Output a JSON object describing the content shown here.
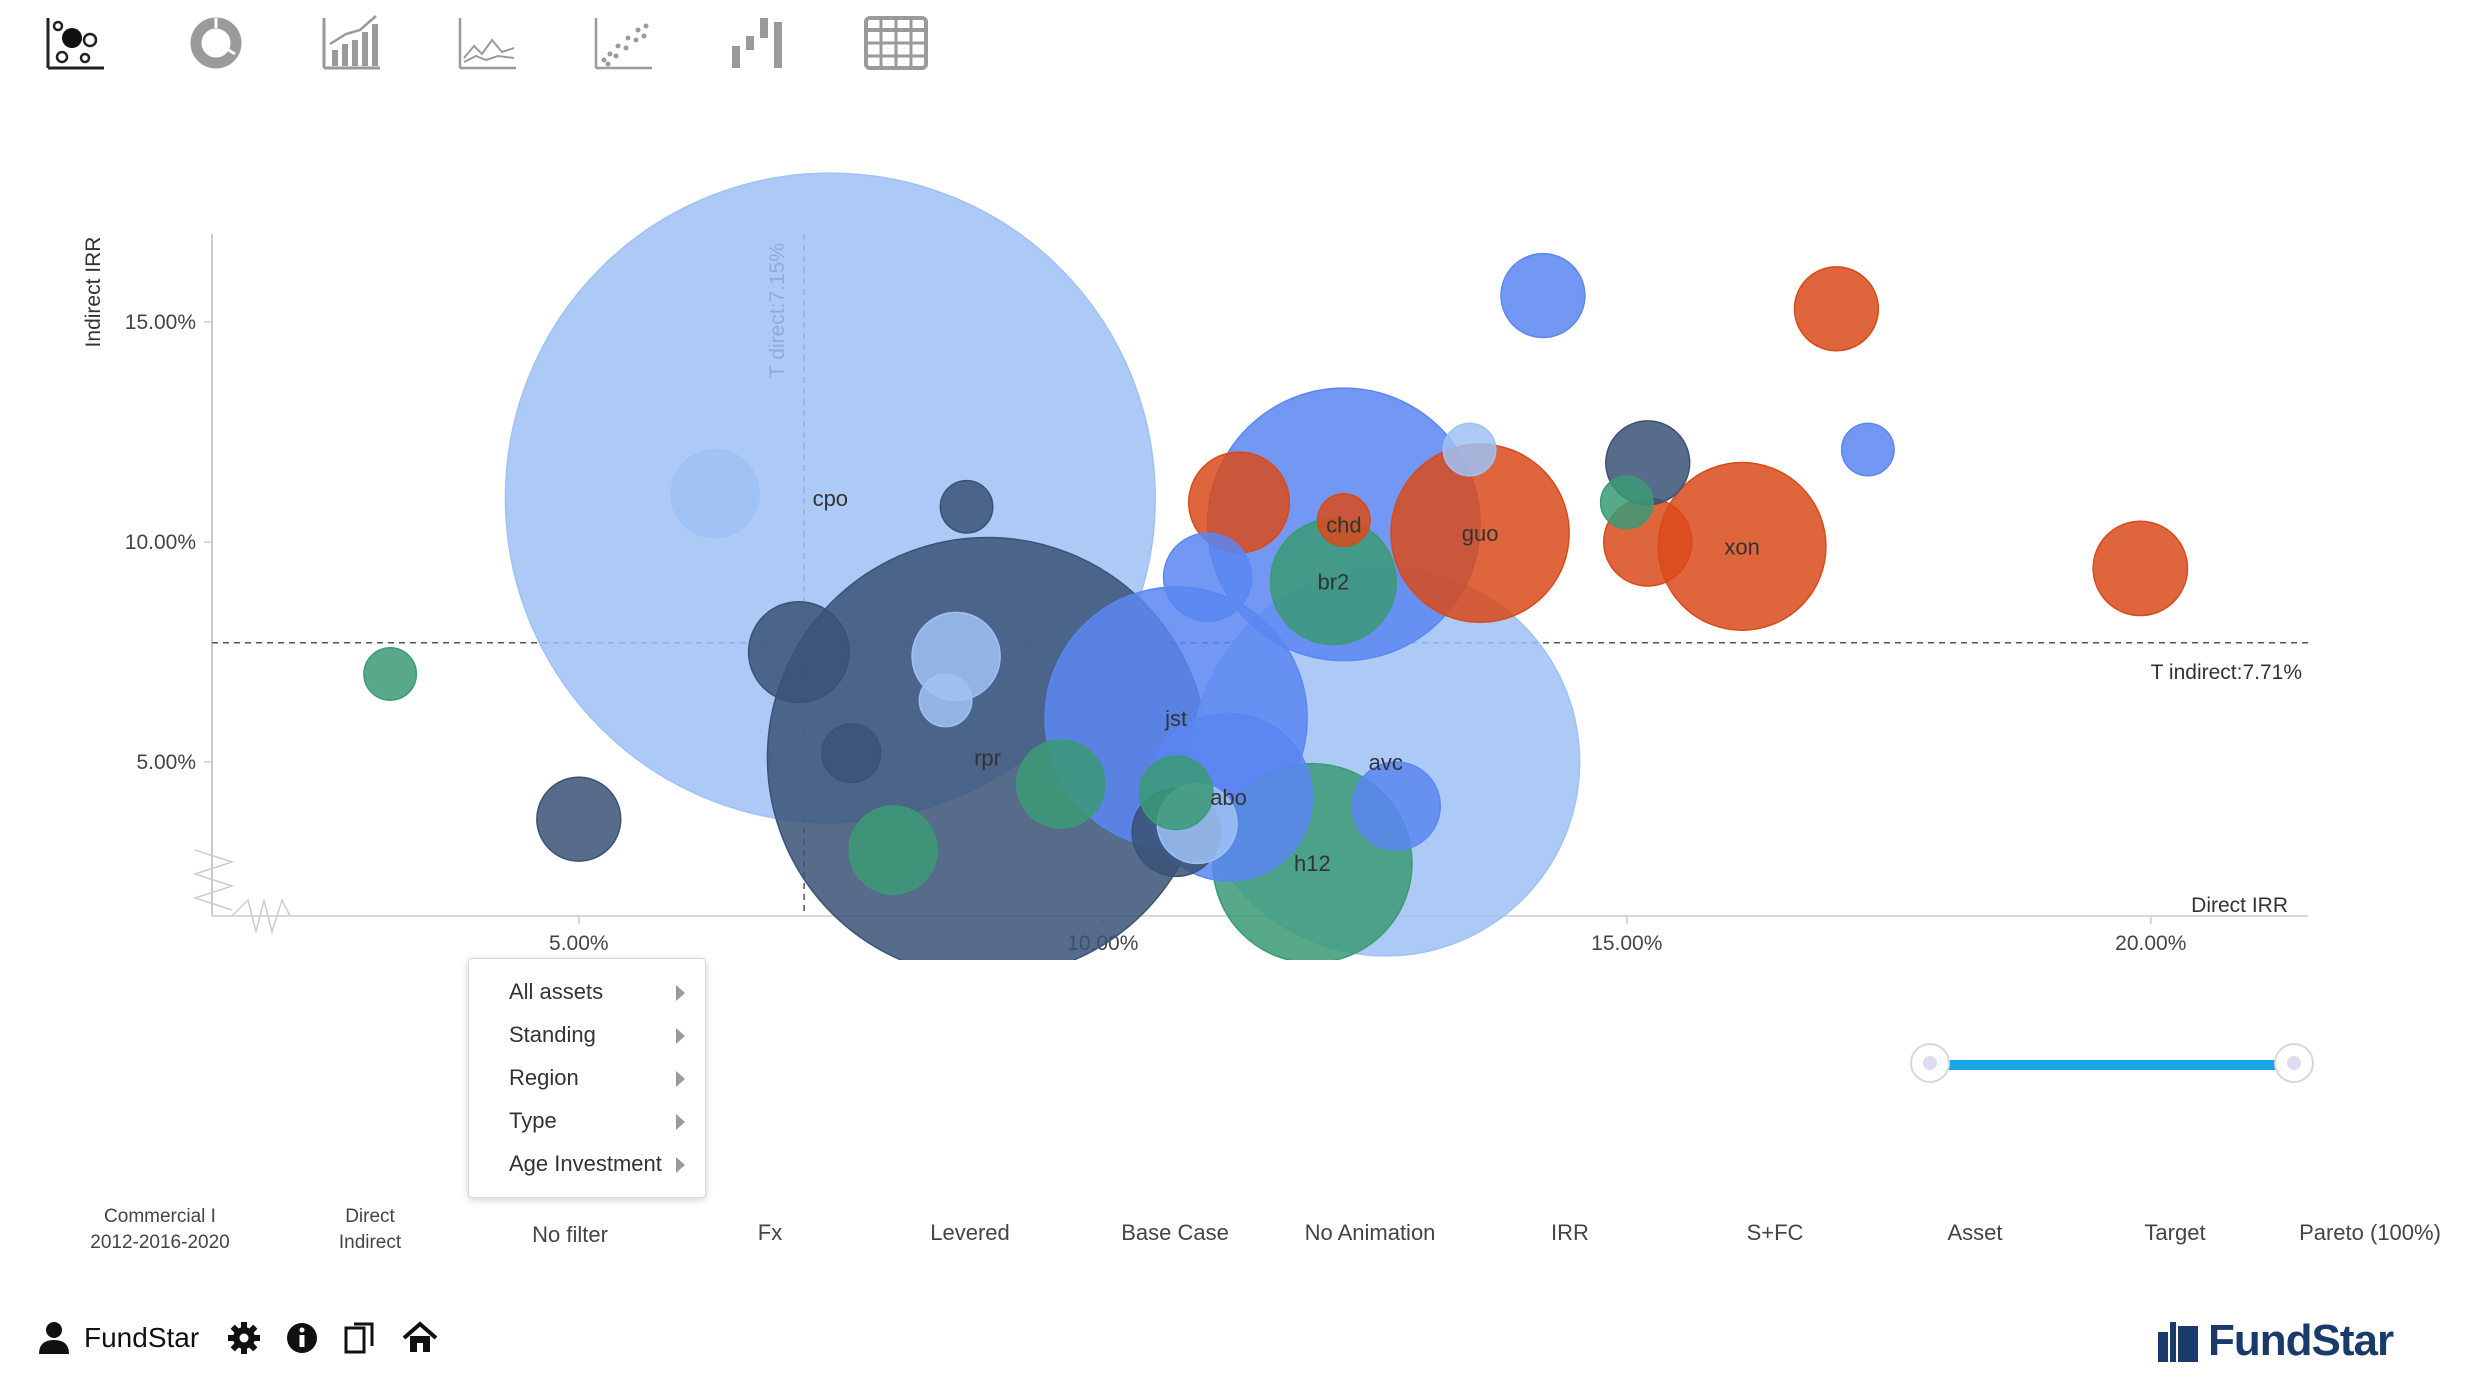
{
  "toolbar": {
    "icons": [
      "bubble-chart-icon",
      "donut-chart-icon",
      "bar-trend-icon",
      "line-chart-icon",
      "scatter-chart-icon",
      "waterfall-icon",
      "table-icon"
    ]
  },
  "chart_data": {
    "type": "scatter",
    "xlabel": "Direct IRR",
    "ylabel": "Indirect IRR",
    "x_ticks": [
      "5.00%",
      "10.00%",
      "15.00%",
      "20.00%"
    ],
    "y_ticks": [
      "5.00%",
      "10.00%",
      "15.00%"
    ],
    "xlim": [
      1.5,
      21.5
    ],
    "ylim": [
      1.5,
      17
    ],
    "target_direct_label": "T direct:7.15%",
    "target_direct": 7.15,
    "target_indirect_label": "T indirect:7.71%",
    "target_indirect": 7.71,
    "colors": {
      "light_blue": "#9fc1f5",
      "navy": "#3a5275",
      "blue": "#5b86f2",
      "orange": "#d94a1a",
      "green": "#3b9a76"
    },
    "points": [
      {
        "x": 7.4,
        "y": 11.0,
        "r": 3.1,
        "color": "light_blue",
        "label": "cpo"
      },
      {
        "x": 8.9,
        "y": 5.1,
        "r": 2.1,
        "color": "navy",
        "label": "rpr"
      },
      {
        "x": 12.7,
        "y": 5.0,
        "r": 1.85,
        "color": "light_blue",
        "label": "avc"
      },
      {
        "x": 10.7,
        "y": 6.0,
        "r": 1.25,
        "color": "blue",
        "label": "jst"
      },
      {
        "x": 12.3,
        "y": 10.4,
        "r": 1.3,
        "color": "blue",
        "label": "chd"
      },
      {
        "x": 13.6,
        "y": 10.2,
        "r": 0.85,
        "color": "orange",
        "label": "guo"
      },
      {
        "x": 16.1,
        "y": 9.9,
        "r": 0.8,
        "color": "orange",
        "label": "xon"
      },
      {
        "x": 12.0,
        "y": 2.7,
        "r": 0.95,
        "color": "green",
        "label": "h12"
      },
      {
        "x": 11.2,
        "y": 4.2,
        "r": 0.8,
        "color": "blue",
        "label": "abo"
      },
      {
        "x": 12.2,
        "y": 9.1,
        "r": 0.6,
        "color": "green",
        "label": "br2"
      },
      {
        "x": 14.2,
        "y": 15.6,
        "r": 0.4,
        "color": "blue",
        "label": ""
      },
      {
        "x": 17.0,
        "y": 15.3,
        "r": 0.4,
        "color": "orange",
        "label": ""
      },
      {
        "x": 15.2,
        "y": 11.8,
        "r": 0.4,
        "color": "navy",
        "label": ""
      },
      {
        "x": 13.5,
        "y": 12.1,
        "r": 0.25,
        "color": "light_blue",
        "label": ""
      },
      {
        "x": 17.3,
        "y": 12.1,
        "r": 0.25,
        "color": "blue",
        "label": ""
      },
      {
        "x": 15.0,
        "y": 10.9,
        "r": 0.25,
        "color": "green",
        "label": ""
      },
      {
        "x": 15.2,
        "y": 10.0,
        "r": 0.42,
        "color": "orange",
        "label": ""
      },
      {
        "x": 11.3,
        "y": 10.9,
        "r": 0.48,
        "color": "orange",
        "label": ""
      },
      {
        "x": 11.0,
        "y": 9.2,
        "r": 0.42,
        "color": "blue",
        "label": ""
      },
      {
        "x": 12.3,
        "y": 10.5,
        "r": 0.25,
        "color": "orange",
        "label": ""
      },
      {
        "x": 19.9,
        "y": 9.4,
        "r": 0.45,
        "color": "orange",
        "label": ""
      },
      {
        "x": 6.3,
        "y": 11.1,
        "r": 0.42,
        "color": "light_blue",
        "label": ""
      },
      {
        "x": 8.7,
        "y": 10.8,
        "r": 0.25,
        "color": "navy",
        "label": ""
      },
      {
        "x": 7.1,
        "y": 7.5,
        "r": 0.48,
        "color": "navy",
        "label": ""
      },
      {
        "x": 8.6,
        "y": 7.4,
        "r": 0.42,
        "color": "light_blue",
        "label": ""
      },
      {
        "x": 8.5,
        "y": 6.4,
        "r": 0.25,
        "color": "light_blue",
        "label": ""
      },
      {
        "x": 7.6,
        "y": 5.2,
        "r": 0.28,
        "color": "navy",
        "label": ""
      },
      {
        "x": 9.6,
        "y": 4.5,
        "r": 0.42,
        "color": "green",
        "label": ""
      },
      {
        "x": 8.0,
        "y": 3.0,
        "r": 0.42,
        "color": "green",
        "label": ""
      },
      {
        "x": 5.0,
        "y": 3.7,
        "r": 0.4,
        "color": "navy",
        "label": ""
      },
      {
        "x": 3.2,
        "y": 7.0,
        "r": 0.25,
        "color": "green",
        "label": ""
      },
      {
        "x": 10.7,
        "y": 4.3,
        "r": 0.35,
        "color": "green",
        "label": ""
      },
      {
        "x": 10.9,
        "y": 3.6,
        "r": 0.38,
        "color": "light_blue",
        "label": ""
      },
      {
        "x": 10.7,
        "y": 3.4,
        "r": 0.42,
        "color": "navy",
        "label": ""
      },
      {
        "x": 12.8,
        "y": 4.0,
        "r": 0.42,
        "color": "blue",
        "label": ""
      }
    ]
  },
  "slider": {
    "range": [
      0,
      1
    ]
  },
  "filter_menu": {
    "items": [
      "All assets",
      "Standing",
      "Region",
      "Type",
      "Age Investment"
    ]
  },
  "bottom_bar": {
    "dataset_line1": "Commercial I",
    "dataset_line2": "2012-2016-2020",
    "mode_line1": "Direct",
    "mode_line2": "Indirect",
    "filter": "No filter",
    "fx": "Fx",
    "levered": "Levered",
    "scenario": "Base Case",
    "animation": "No Animation",
    "metric": "IRR",
    "cost": "S+FC",
    "level": "Asset",
    "target": "Target",
    "pareto": "Pareto (100%)"
  },
  "footer": {
    "user_name": "FundStar",
    "brand": "FundStar",
    "brand_color": "#1a3a6b"
  }
}
